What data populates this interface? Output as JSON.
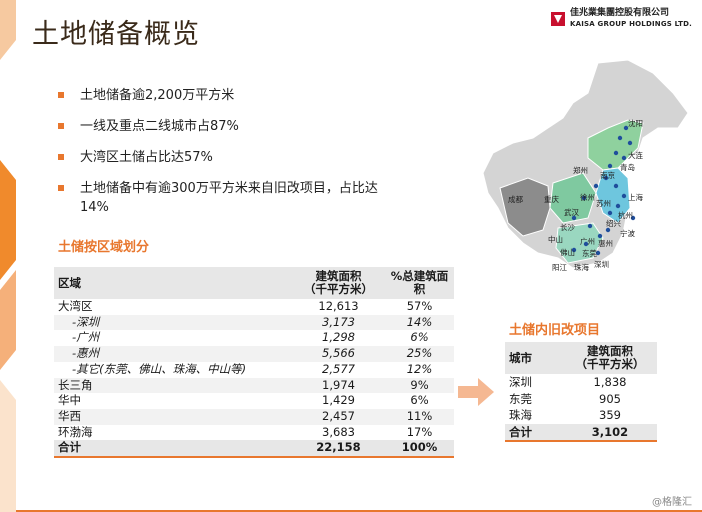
{
  "title": "土地储备概览",
  "logo": {
    "cn": "佳兆業集團控股有限公司",
    "en": "KAISA GROUP HOLDINGS LTD."
  },
  "bullets": [
    "土地储备逾2,200万平方米",
    "一线及重点二线城市占87%",
    "大湾区土储占比达57%",
    "土地储备中有逾300万平方米来自旧改项目，占比达14%"
  ],
  "region_table": {
    "title": "土储按区域划分",
    "headers": {
      "region": "区域",
      "area": "建筑面积",
      "area_unit": "（千平方米）",
      "pct": "%总建筑面积"
    },
    "rows": [
      {
        "name": "大湾区",
        "area": "12,613",
        "pct": "57%",
        "sub": false
      },
      {
        "name": "-深圳",
        "area": "3,173",
        "pct": "14%",
        "sub": true
      },
      {
        "name": "-广州",
        "area": "1,298",
        "pct": "6%",
        "sub": true
      },
      {
        "name": "-惠州",
        "area": "5,566",
        "pct": "25%",
        "sub": true
      },
      {
        "name": "-其它(东莞、佛山、珠海、中山等)",
        "area": "2,577",
        "pct": "12%",
        "sub": true
      },
      {
        "name": "长三角",
        "area": "1,974",
        "pct": "9%",
        "sub": false
      },
      {
        "name": "华中",
        "area": "1,429",
        "pct": "6%",
        "sub": false
      },
      {
        "name": "华西",
        "area": "2,457",
        "pct": "11%",
        "sub": false
      },
      {
        "name": "环渤海",
        "area": "3,683",
        "pct": "17%",
        "sub": false
      }
    ],
    "total": {
      "name": "合计",
      "area": "22,158",
      "pct": "100%"
    }
  },
  "renewal_table": {
    "title": "土储内旧改项目",
    "headers": {
      "city": "城市",
      "area": "建筑面积",
      "area_unit": "（千平方米）"
    },
    "rows": [
      {
        "name": "深圳",
        "area": "1,838"
      },
      {
        "name": "东莞",
        "area": "905"
      },
      {
        "name": "珠海",
        "area": "359"
      }
    ],
    "total": {
      "name": "合计",
      "area": "3,102"
    }
  },
  "map_cities": [
    "沈阳",
    "大连",
    "青岛",
    "郑州",
    "南京",
    "徐州",
    "上海",
    "成都",
    "重庆",
    "武汉",
    "苏州",
    "杭州",
    "绍兴",
    "宁波",
    "长沙",
    "中山",
    "广州",
    "惠州",
    "佛山",
    "东莞",
    "深圳",
    "阳江",
    "珠海"
  ],
  "watermark": "@格隆汇",
  "colors": {
    "accent": "#e8772e",
    "map_base": "#d4d4d4",
    "map_west": "#8c8c8c",
    "map_green": "#8fd19e",
    "map_blue": "#6ec6de",
    "dot": "#1f4e9c"
  }
}
